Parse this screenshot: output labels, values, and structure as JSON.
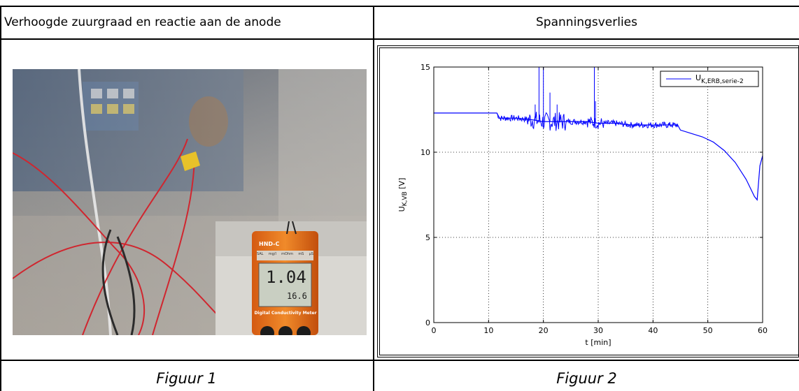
{
  "table": {
    "header_left": "Verhoogde zuurgraad en reactie aan de anode",
    "header_right": "Spanningsverlies",
    "caption_left": "Figuur 1",
    "caption_right": "Figuur 2"
  },
  "photo": {
    "meter_brand": "HND-C",
    "meter_reading_main": "1.04",
    "meter_reading_temp": "16.6",
    "meter_label": "Digital Conductivity Meter",
    "meter_tabs": [
      "SAL",
      "mg/l",
      "mOhm",
      "mS",
      "µS"
    ]
  },
  "chart_data": {
    "type": "line",
    "xlabel": "t [min]",
    "ylabel_main": "U",
    "ylabel_sub": "K,VB",
    "ylabel_unit": " [V]",
    "xlim": [
      0,
      60
    ],
    "ylim": [
      0,
      15
    ],
    "xticks": [
      0,
      10,
      20,
      30,
      40,
      50,
      60
    ],
    "yticks": [
      0,
      5,
      10,
      15
    ],
    "grid": true,
    "legend_position": "top-right",
    "series": [
      {
        "legend_main": "U",
        "legend_sub": "K,ERB,serie-2",
        "color": "#0000ff",
        "x": [
          0,
          2,
          5,
          8,
          11.5,
          12,
          15,
          18,
          20,
          22,
          25,
          28,
          30,
          33,
          36,
          40,
          43,
          44.5,
          45,
          47,
          49,
          51,
          53,
          55,
          57,
          58.5,
          59,
          59.5,
          60
        ],
        "y": [
          12.3,
          12.3,
          12.3,
          12.3,
          12.3,
          12.0,
          12.0,
          11.9,
          11.8,
          11.8,
          11.8,
          11.8,
          11.7,
          11.7,
          11.6,
          11.6,
          11.6,
          11.6,
          11.3,
          11.1,
          10.9,
          10.6,
          10.1,
          9.4,
          8.4,
          7.4,
          7.2,
          9.2,
          9.8
        ]
      }
    ],
    "spikes": [
      {
        "x": 19.2,
        "y": 15
      },
      {
        "x": 20.0,
        "y": 15
      },
      {
        "x": 21.2,
        "y": 13.5
      },
      {
        "x": 29.3,
        "y": 15
      },
      {
        "x": 29.5,
        "y": 13.0
      },
      {
        "x": 22.5,
        "y": 12.8
      },
      {
        "x": 18.5,
        "y": 12.8
      }
    ]
  }
}
